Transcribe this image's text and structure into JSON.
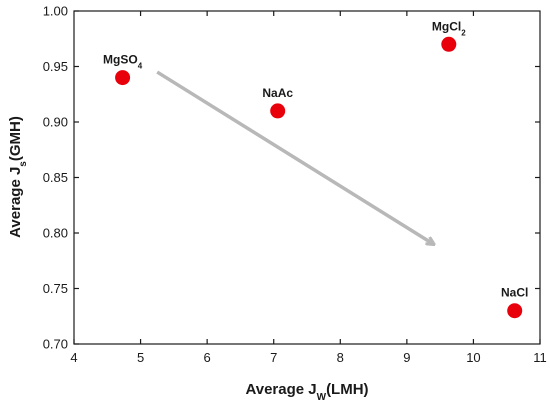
{
  "chart_data": {
    "type": "scatter",
    "title": "",
    "xlabel": {
      "main": "Average J",
      "sub": "W",
      "suffix": "(LMH)"
    },
    "ylabel": {
      "main": "Average J",
      "sub": "s",
      "suffix": "(GMH)"
    },
    "xlim": [
      4,
      11
    ],
    "ylim": [
      0.7,
      1.0
    ],
    "xticks": [
      "4",
      "5",
      "6",
      "7",
      "8",
      "9",
      "10",
      "11"
    ],
    "yticks": [
      "0.70",
      "0.75",
      "0.80",
      "0.85",
      "0.90",
      "0.95",
      "1.00"
    ],
    "grid": false,
    "points": [
      {
        "label": "MgSO",
        "label_sub": "4",
        "x": 4.73,
        "y": 0.94
      },
      {
        "label": "NaAc",
        "label_sub": "",
        "x": 7.06,
        "y": 0.91
      },
      {
        "label": "MgCl",
        "label_sub": "2",
        "x": 9.63,
        "y": 0.97
      },
      {
        "label": "NaCl",
        "label_sub": "",
        "x": 10.62,
        "y": 0.73
      }
    ],
    "arrow": {
      "from": [
        5.25,
        0.945
      ],
      "to": [
        9.4,
        0.79
      ]
    },
    "colors": {
      "point": "#e8000b",
      "arrow": "#b8b8b8",
      "axis": "#1a1a1a"
    }
  }
}
